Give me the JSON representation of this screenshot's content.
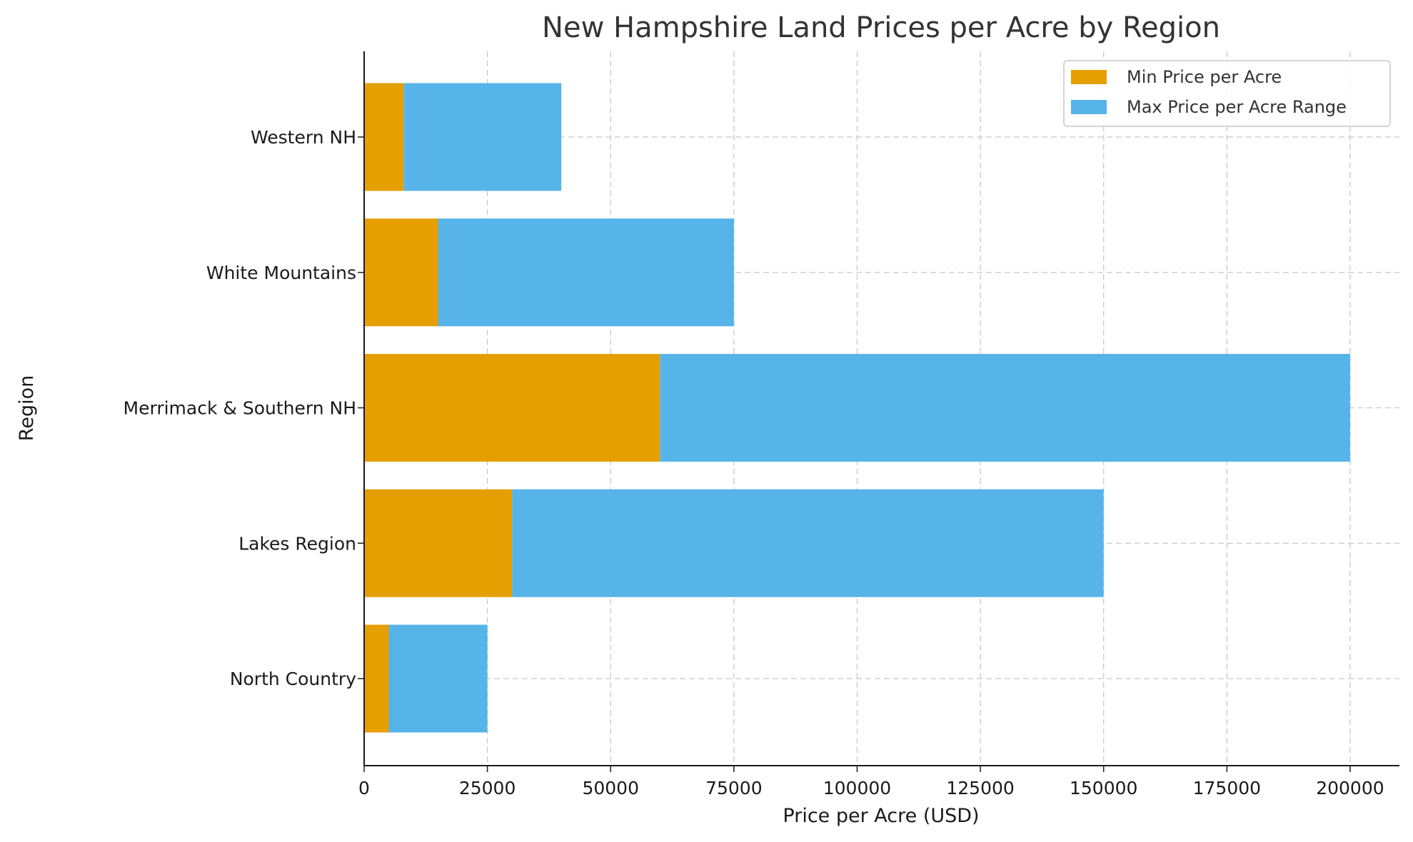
{
  "chart_data": {
    "type": "bar",
    "orientation": "horizontal",
    "stacked": true,
    "title": "New Hampshire Land Prices per Acre by Region",
    "xlabel": "Price per Acre (USD)",
    "ylabel": "Region",
    "categories": [
      "North Country",
      "Lakes Region",
      "Merrimack & Southern NH",
      "White Mountains",
      "Western NH"
    ],
    "series": [
      {
        "name": "Min Price per Acre",
        "color": "#E69F00",
        "values": [
          5000,
          30000,
          60000,
          15000,
          8000
        ]
      },
      {
        "name": "Max Price per Acre Range",
        "color": "#56B4E9",
        "values": [
          20000,
          120000,
          140000,
          60000,
          32000
        ]
      }
    ],
    "xlim": [
      0,
      210000
    ],
    "xticks": [
      "0",
      "25000",
      "50000",
      "75000",
      "100000",
      "125000",
      "150000",
      "175000",
      "200000"
    ],
    "grid": true,
    "legend_position": "top-right"
  }
}
